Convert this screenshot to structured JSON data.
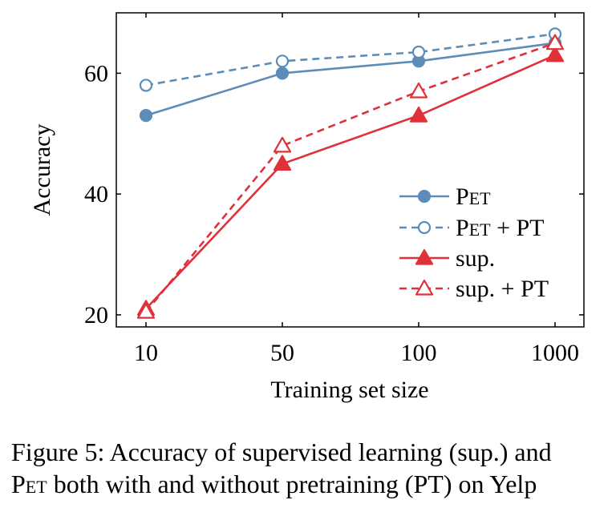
{
  "chart_data": {
    "type": "line",
    "categories": [
      "10",
      "50",
      "100",
      "1000"
    ],
    "xlabel": "Training set size",
    "ylabel": "Accuracy",
    "ylim": [
      18,
      70
    ],
    "yticks": [
      "20",
      "40",
      "60"
    ],
    "grid": false,
    "legend_position": "lower-right",
    "series": [
      {
        "name": "PET",
        "values": [
          53,
          60,
          62,
          65
        ],
        "color": "#5b8db8",
        "style": "solid",
        "marker": "filled-circle"
      },
      {
        "name": "PET + PT",
        "values": [
          58,
          62,
          63.5,
          66.5
        ],
        "color": "#5b8db8",
        "style": "dashed",
        "marker": "open-circle"
      },
      {
        "name": "sup.",
        "values": [
          21,
          45,
          53,
          63
        ],
        "color": "#e0303a",
        "style": "solid",
        "marker": "filled-triangle"
      },
      {
        "name": "sup. + PT",
        "values": [
          20.5,
          48,
          57,
          65
        ],
        "color": "#e0303a",
        "style": "dashed",
        "marker": "open-triangle"
      }
    ]
  },
  "caption": {
    "prefix": "Figure 5: Accuracy of supervised learning (sup.) and",
    "pet": "Pet",
    "rest": " both with and without pretraining (PT) on Yelp"
  }
}
